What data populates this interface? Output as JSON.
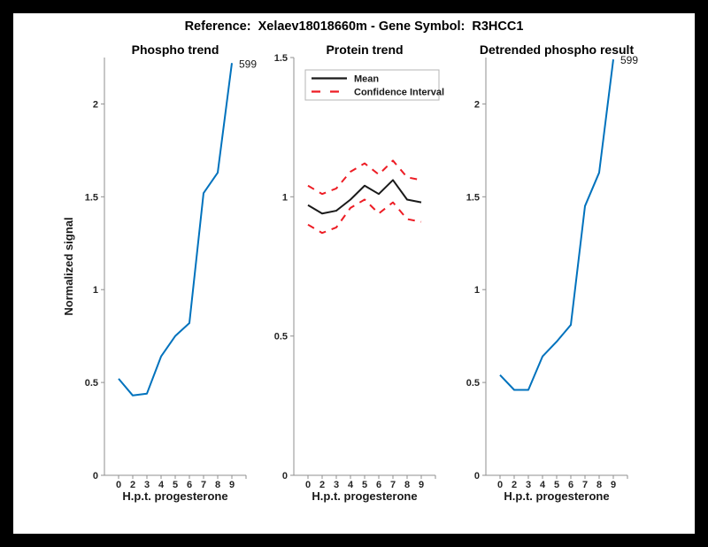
{
  "header": {
    "title": "Reference:  Xelaev18018660m - Gene Symbol:  R3HCC1"
  },
  "colors": {
    "figure_frame": "#000000",
    "figure_background": "#ffffff",
    "axis": "#8f8f8f",
    "tick_text": "#262626",
    "phospho_blue": "#0072BD",
    "ci_red": "#ED1C24",
    "mean_black": "#1a1a1a",
    "legend_border": "#b5b5b5"
  },
  "chart_data": [
    {
      "type": "line",
      "title": "Phospho trend",
      "xlabel": "H.p.t. progesterone",
      "ylabel": "Normalized signal",
      "x_ticklabels": [
        "0",
        "2",
        "3",
        "4",
        "5",
        "6",
        "7",
        "8",
        "9",
        ""
      ],
      "categories": [
        "0",
        "2",
        "3",
        "4",
        "5",
        "6",
        "7",
        "8",
        "9"
      ],
      "xlim": [
        0,
        10
      ],
      "ylim": [
        0,
        2.25
      ],
      "yticks": [
        0,
        0.5,
        1,
        1.5,
        2
      ],
      "grid": false,
      "legend": null,
      "series": [
        {
          "name": "Phospho trend",
          "color": "#0072BD",
          "style": "solid",
          "values": [
            0.52,
            0.43,
            0.44,
            0.64,
            0.75,
            0.82,
            1.52,
            1.63,
            2.22
          ]
        }
      ],
      "annotation": {
        "text": "599"
      }
    },
    {
      "type": "line",
      "title": "Protein trend",
      "xlabel": "H.p.t. progesterone",
      "ylabel": null,
      "x_ticklabels": [
        "0",
        "2",
        "3",
        "4",
        "5",
        "6",
        "7",
        "8",
        "9",
        ""
      ],
      "categories": [
        "0",
        "2",
        "3",
        "4",
        "5",
        "6",
        "7",
        "8",
        "9"
      ],
      "xlim": [
        0,
        10
      ],
      "ylim": [
        0,
        1.5
      ],
      "yticks": [
        0,
        0.5,
        1,
        1.5
      ],
      "grid": false,
      "legend": {
        "position": "top-left",
        "entries": [
          {
            "label": "Mean",
            "color": "#1a1a1a",
            "style": "solid"
          },
          {
            "label": "Confidence Interval",
            "color": "#ED1C24",
            "style": "dashed"
          }
        ]
      },
      "series": [
        {
          "name": "Confidence Interval upper",
          "color": "#ED1C24",
          "style": "dashed",
          "values": [
            1.04,
            1.01,
            1.03,
            1.09,
            1.12,
            1.08,
            1.13,
            1.07,
            1.06
          ]
        },
        {
          "name": "Confidence Interval lower",
          "color": "#ED1C24",
          "style": "dashed",
          "values": [
            0.9,
            0.87,
            0.89,
            0.96,
            0.99,
            0.94,
            0.98,
            0.92,
            0.91
          ]
        },
        {
          "name": "Mean",
          "color": "#1a1a1a",
          "style": "solid",
          "values": [
            0.97,
            0.94,
            0.95,
            0.99,
            1.04,
            1.01,
            1.06,
            0.99,
            0.98
          ]
        }
      ],
      "annotation": null
    },
    {
      "type": "line",
      "title": "Detrended phospho result",
      "xlabel": "H.p.t. progesterone",
      "ylabel": null,
      "x_ticklabels": [
        "0",
        "2",
        "3",
        "4",
        "5",
        "6",
        "7",
        "8",
        "9",
        ""
      ],
      "categories": [
        "0",
        "2",
        "3",
        "4",
        "5",
        "6",
        "7",
        "8",
        "9"
      ],
      "xlim": [
        0,
        10
      ],
      "ylim": [
        0,
        2.25
      ],
      "yticks": [
        0,
        0.5,
        1,
        1.5,
        2
      ],
      "grid": false,
      "legend": null,
      "series": [
        {
          "name": "Detrended phospho",
          "color": "#0072BD",
          "style": "solid",
          "values": [
            0.54,
            0.46,
            0.46,
            0.64,
            0.72,
            0.81,
            1.45,
            1.63,
            2.24
          ]
        }
      ],
      "annotation": {
        "text": "599"
      }
    }
  ]
}
